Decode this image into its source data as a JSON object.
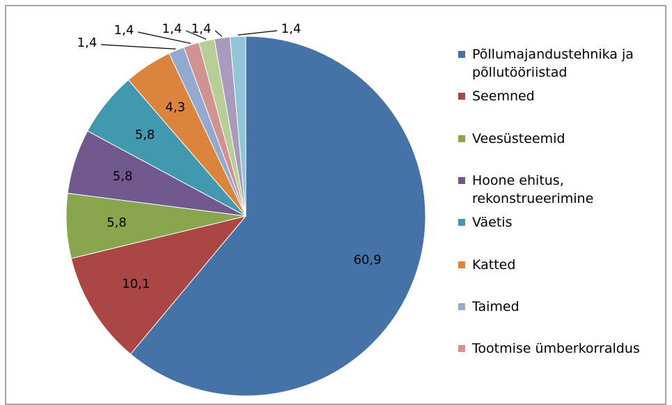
{
  "chart_data": {
    "type": "pie",
    "categories": [
      "Põllumajandustehnika ja põllutööriistad",
      "Seemned",
      "Veesüsteemid",
      "Hoone ehitus, rekonstrueerimine",
      "Väetis",
      "Katted",
      "Taimed",
      "Tootmise ümberkorraldus",
      null,
      null,
      null
    ],
    "values": [
      60.9,
      10.1,
      5.8,
      5.8,
      5.8,
      4.3,
      1.4,
      1.4,
      1.4,
      1.4,
      1.4
    ],
    "value_labels": [
      "60,9",
      "10,1",
      "5,8",
      "5,8",
      "5,8",
      "4,3",
      "1,4",
      "1,4",
      "1,4",
      "1,4",
      "1,4"
    ],
    "colors": [
      "#4572a7",
      "#aa4643",
      "#89a54e",
      "#71588f",
      "#4198af",
      "#db843d",
      "#93a9cf",
      "#d19392",
      "#b9cd96",
      "#a99bbd",
      "#92c5d8"
    ],
    "legend": "right"
  }
}
